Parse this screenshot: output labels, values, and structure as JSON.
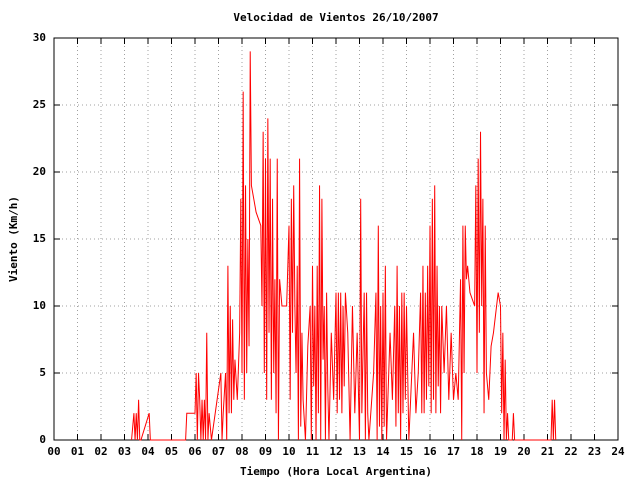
{
  "chart_data": {
    "type": "line",
    "title": "Velocidad de Vientos 26/10/2007",
    "xlabel": "Tiempo (Hora Local Argentina)",
    "ylabel": "Viento (Km/h)",
    "xlim": [
      0,
      24
    ],
    "ylim": [
      0,
      30
    ],
    "xticks": [
      {
        "value": 0,
        "label": "00"
      },
      {
        "value": 1,
        "label": "01"
      },
      {
        "value": 2,
        "label": "02"
      },
      {
        "value": 3,
        "label": "03"
      },
      {
        "value": 4,
        "label": "04"
      },
      {
        "value": 5,
        "label": "05"
      },
      {
        "value": 6,
        "label": "06"
      },
      {
        "value": 7,
        "label": "07"
      },
      {
        "value": 8,
        "label": "08"
      },
      {
        "value": 9,
        "label": "09"
      },
      10,
      11,
      12,
      13,
      14,
      15,
      16,
      17,
      18,
      19,
      20,
      21,
      22,
      23,
      24
    ],
    "yticks": [
      0,
      5,
      10,
      15,
      20,
      25,
      30
    ],
    "grid": true,
    "color": "#ff0000",
    "x": [
      3.3,
      3.4,
      3.45,
      3.5,
      3.55,
      3.6,
      3.65,
      3.7,
      4.05,
      4.1,
      5.6,
      5.65,
      6.0,
      6.05,
      6.1,
      6.15,
      6.2,
      6.25,
      6.3,
      6.35,
      6.4,
      6.45,
      6.5,
      6.55,
      6.6,
      6.7,
      7.1,
      7.15,
      7.2,
      7.3,
      7.35,
      7.4,
      7.45,
      7.5,
      7.55,
      7.6,
      7.65,
      7.7,
      7.8,
      7.9,
      7.95,
      8.0,
      8.05,
      8.1,
      8.15,
      8.2,
      8.25,
      8.3,
      8.35,
      8.4,
      8.5,
      8.6,
      8.8,
      8.85,
      8.9,
      8.95,
      9.0,
      9.05,
      9.1,
      9.15,
      9.2,
      9.25,
      9.3,
      9.35,
      9.4,
      9.45,
      9.5,
      9.55,
      9.6,
      9.7,
      9.9,
      10.0,
      10.05,
      10.1,
      10.15,
      10.2,
      10.25,
      10.3,
      10.35,
      10.4,
      10.45,
      10.5,
      10.55,
      10.6,
      10.7,
      10.8,
      10.9,
      10.95,
      11.0,
      11.05,
      11.1,
      11.15,
      11.2,
      11.25,
      11.3,
      11.35,
      11.4,
      11.45,
      11.5,
      11.55,
      11.6,
      11.65,
      11.7,
      11.8,
      11.9,
      12.0,
      12.05,
      12.1,
      12.15,
      12.2,
      12.25,
      12.3,
      12.35,
      12.4,
      12.5,
      12.6,
      12.7,
      12.8,
      12.9,
      13.0,
      13.05,
      13.1,
      13.2,
      13.25,
      13.3,
      13.35,
      13.4,
      13.6,
      13.7,
      13.75,
      13.8,
      13.85,
      13.9,
      13.95,
      14.0,
      14.05,
      14.1,
      14.15,
      14.3,
      14.4,
      14.5,
      14.55,
      14.6,
      14.65,
      14.7,
      14.75,
      14.8,
      14.85,
      14.9,
      14.95,
      15.0,
      15.1,
      15.3,
      15.4,
      15.5,
      15.6,
      15.65,
      15.7,
      15.75,
      15.8,
      15.85,
      15.9,
      15.95,
      16.0,
      16.05,
      16.1,
      16.15,
      16.2,
      16.25,
      16.3,
      16.35,
      16.4,
      16.45,
      16.5,
      16.6,
      16.7,
      16.8,
      16.9,
      17.0,
      17.1,
      17.2,
      17.3,
      17.35,
      17.4,
      17.45,
      17.5,
      17.55,
      17.6,
      17.7,
      17.9,
      17.95,
      18.0,
      18.05,
      18.1,
      18.15,
      18.2,
      18.25,
      18.3,
      18.35,
      18.4,
      18.5,
      18.6,
      18.7,
      18.9,
      19.0,
      19.05,
      19.1,
      19.15,
      19.2,
      19.25,
      19.3,
      19.35,
      19.5,
      19.55,
      19.6,
      21.15,
      21.2,
      21.25,
      21.3,
      21.35
    ],
    "values": [
      0,
      2,
      0,
      2,
      0,
      3,
      0,
      0,
      2,
      0,
      0,
      2,
      2,
      5,
      0,
      5,
      3,
      0,
      3,
      0,
      3,
      0,
      8,
      0,
      2,
      0,
      5,
      0,
      2,
      5,
      0,
      13,
      2,
      10,
      2,
      9,
      3,
      6,
      3,
      8,
      18,
      5,
      26,
      3,
      19,
      5,
      15,
      7,
      29,
      19,
      18,
      17,
      16,
      10,
      23,
      5,
      21,
      3,
      24,
      8,
      21,
      3,
      18,
      5,
      12,
      2,
      21,
      0,
      12,
      10,
      10,
      16,
      3,
      18,
      8,
      19,
      10,
      5,
      13,
      0,
      21,
      1,
      8,
      3,
      0,
      7,
      10,
      0,
      13,
      4,
      10,
      0,
      13,
      2,
      19,
      0,
      18,
      6,
      10,
      0,
      11,
      4,
      0,
      8,
      3,
      11,
      2,
      11,
      3,
      11,
      2,
      10,
      4,
      11,
      8,
      0,
      10,
      2,
      8,
      0,
      18,
      2,
      11,
      0,
      11,
      2,
      0,
      5,
      11,
      0,
      16,
      1,
      10,
      0,
      11,
      1,
      13,
      0,
      8,
      3,
      10,
      1,
      13,
      2,
      10,
      0,
      11,
      2,
      11,
      3,
      10,
      0,
      8,
      2,
      5,
      11,
      2,
      13,
      2,
      11,
      3,
      13,
      4,
      16,
      2,
      18,
      3,
      19,
      2,
      13,
      4,
      10,
      2,
      10,
      5,
      10,
      3,
      8,
      3,
      5,
      3,
      12,
      0,
      16,
      5,
      16,
      12,
      13,
      11,
      10,
      19,
      5,
      21,
      8,
      23,
      10,
      18,
      2,
      16,
      5,
      3,
      7,
      8,
      11,
      10,
      2,
      8,
      0,
      6,
      0,
      2,
      0,
      0,
      2,
      0,
      0,
      3,
      0,
      3,
      0
    ]
  }
}
